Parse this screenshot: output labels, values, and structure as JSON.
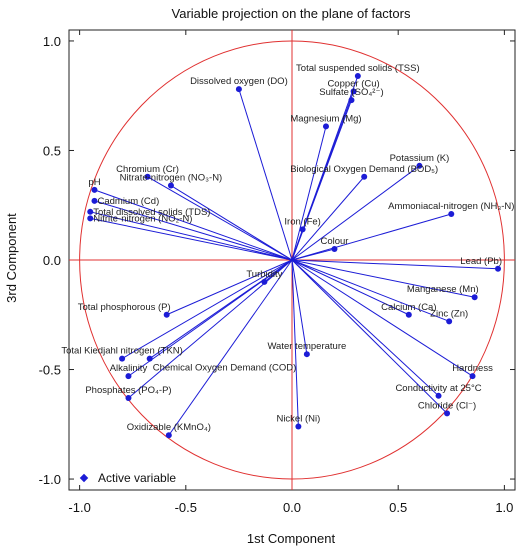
{
  "chart_data": {
    "type": "scatter",
    "title": "Variable projection on the plane of factors",
    "xlabel": "1st Component",
    "ylabel": "3rd Component",
    "xlim": [
      -1.05,
      1.05
    ],
    "ylim": [
      -1.05,
      1.05
    ],
    "xticks": [
      "-1.0",
      "-0.5",
      "0.0",
      "0.5",
      "1.0"
    ],
    "yticks": [
      "-1.0",
      "-0.5",
      "0.0",
      "0.5",
      "1.0"
    ],
    "xtick_values": [
      -1.0,
      -0.5,
      0.0,
      0.5,
      1.0
    ],
    "ytick_values": [
      -1.0,
      -0.5,
      0.0,
      0.5,
      1.0
    ],
    "unit_circle": true,
    "reference_lines": [
      0,
      0
    ],
    "legend": {
      "label": "Active variable",
      "position": "bottom-left"
    },
    "colors": {
      "vector": "#1c1cd6",
      "point": "#1c1cd6",
      "circle": "#e03030",
      "reference": "#e03030"
    },
    "points": [
      {
        "label": "Dissolved oxygen (DO)",
        "x": -0.25,
        "y": 0.78,
        "anchor": "middle",
        "pos": "above"
      },
      {
        "label": "Total suspended solids (TSS)",
        "x": 0.31,
        "y": 0.84,
        "anchor": "middle",
        "pos": "above"
      },
      {
        "label": "Copper (Cu)",
        "x": 0.29,
        "y": 0.77,
        "anchor": "middle",
        "pos": "above"
      },
      {
        "label": "Sulfate (SO₄²⁻)",
        "x": 0.28,
        "y": 0.73,
        "anchor": "middle",
        "pos": "above"
      },
      {
        "label": "Magnesium (Mg)",
        "x": 0.16,
        "y": 0.61,
        "anchor": "middle",
        "pos": "above"
      },
      {
        "label": "Potassium (K)",
        "x": 0.6,
        "y": 0.43,
        "anchor": "middle",
        "pos": "above"
      },
      {
        "label": "Biological Oxygen Demand (BOD₅)",
        "x": 0.34,
        "y": 0.38,
        "anchor": "middle",
        "pos": "above"
      },
      {
        "label": "Chromium (Cr)",
        "x": -0.68,
        "y": 0.38,
        "anchor": "middle",
        "pos": "above"
      },
      {
        "label": "Nitrate-nitrogen (NO₃-N)",
        "x": -0.57,
        "y": 0.34,
        "anchor": "middle",
        "pos": "above"
      },
      {
        "label": "pH",
        "x": -0.93,
        "y": 0.32,
        "anchor": "middle",
        "pos": "above"
      },
      {
        "label": "Cadmium (Cd)",
        "x": -0.93,
        "y": 0.27,
        "anchor": "start",
        "pos": "right"
      },
      {
        "label": "Total dissolved solids (TDS)",
        "x": -0.95,
        "y": 0.22,
        "anchor": "start",
        "pos": "right"
      },
      {
        "label": "Nitrite-nitrogen (NO₂-N)",
        "x": -0.95,
        "y": 0.19,
        "anchor": "start",
        "pos": "right"
      },
      {
        "label": "Ammoniacal-nitrogen (NH₃-N)",
        "x": 0.75,
        "y": 0.21,
        "anchor": "middle",
        "pos": "above"
      },
      {
        "label": "Iron (Fe)",
        "x": 0.05,
        "y": 0.14,
        "anchor": "middle",
        "pos": "above"
      },
      {
        "label": "Colour",
        "x": 0.2,
        "y": 0.05,
        "anchor": "middle",
        "pos": "above"
      },
      {
        "label": "Lead (Pb)",
        "x": 0.97,
        "y": -0.04,
        "anchor": "end",
        "pos": "above"
      },
      {
        "label": "Turbidity",
        "x": -0.13,
        "y": -0.1,
        "anchor": "middle",
        "pos": "above"
      },
      {
        "label": "Manganese (Mn)",
        "x": 0.86,
        "y": -0.17,
        "anchor": "end",
        "pos": "above"
      },
      {
        "label": "Total phosphorous (P)",
        "x": -0.59,
        "y": -0.25,
        "anchor": "end",
        "pos": "above"
      },
      {
        "label": "Calcium (Ca)",
        "x": 0.55,
        "y": -0.25,
        "anchor": "middle",
        "pos": "above"
      },
      {
        "label": "Zinc (Zn)",
        "x": 0.74,
        "y": -0.28,
        "anchor": "middle",
        "pos": "above"
      },
      {
        "label": "Total Kiedjahl nitrogen (TKN)",
        "x": -0.8,
        "y": -0.45,
        "anchor": "middle",
        "pos": "above"
      },
      {
        "label": "Water temperature",
        "x": 0.07,
        "y": -0.43,
        "anchor": "middle",
        "pos": "above"
      },
      {
        "label": "Chemical Oxygen Demand (COD)",
        "x": -0.67,
        "y": -0.45,
        "anchor": "start",
        "pos": "below"
      },
      {
        "label": "Alkalinity",
        "x": -0.77,
        "y": -0.53,
        "anchor": "middle",
        "pos": "above"
      },
      {
        "label": "Hardness",
        "x": 0.85,
        "y": -0.53,
        "anchor": "middle",
        "pos": "above"
      },
      {
        "label": "Phosphates (PO₄-P)",
        "x": -0.77,
        "y": -0.63,
        "anchor": "middle",
        "pos": "above"
      },
      {
        "label": "Conductivity at 25°C",
        "x": 0.69,
        "y": -0.62,
        "anchor": "middle",
        "pos": "above"
      },
      {
        "label": "Chloride (Cl⁻)",
        "x": 0.73,
        "y": -0.7,
        "anchor": "middle",
        "pos": "above"
      },
      {
        "label": "Oxidizable (KMnO₄)",
        "x": -0.58,
        "y": -0.8,
        "anchor": "middle",
        "pos": "above"
      },
      {
        "label": "Nickel (Ni)",
        "x": 0.03,
        "y": -0.76,
        "anchor": "middle",
        "pos": "above"
      }
    ]
  }
}
